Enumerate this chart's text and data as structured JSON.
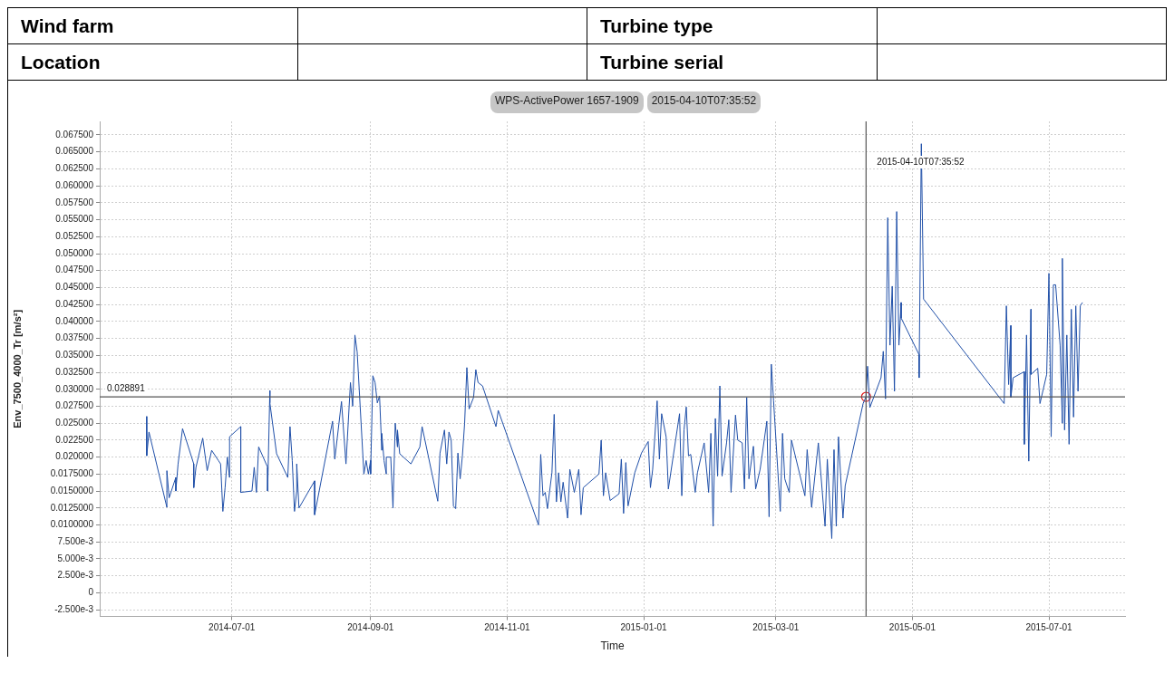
{
  "chart_data": {
    "type": "line",
    "title": "WPS-ActivePower 1657-1909",
    "subtitle": "2015-04-10T07:35:52",
    "annotations": [
      "Wind farm",
      "Location",
      "Turbine type",
      "Turbine serial"
    ],
    "xlabel": "Time",
    "ylabel": "Env_7500_4000_Tr [m/s²]",
    "xlim": [
      "2014-05-03",
      "2015-08-04"
    ],
    "xticks": [
      "2014-07-01",
      "2014-09-01",
      "2014-11-01",
      "2015-01-01",
      "2015-03-01",
      "2015-05-01",
      "2015-07-01"
    ],
    "ylim": [
      -0.0035,
      0.0695
    ],
    "yticks": [
      {
        "value": -0.0025,
        "label": "-2.500e-3"
      },
      0,
      {
        "value": 0.0025,
        "label": "2.500e-3"
      },
      {
        "value": 0.005,
        "label": "5.000e-3"
      },
      {
        "value": 0.0075,
        "label": "7.500e-3"
      },
      {
        "value": 0.01,
        "label": "0.0100000"
      },
      {
        "value": 0.0125,
        "label": "0.0125000"
      },
      {
        "value": 0.015,
        "label": "0.0150000"
      },
      {
        "value": 0.0175,
        "label": "0.0175000"
      },
      {
        "value": 0.02,
        "label": "0.020000"
      },
      {
        "value": 0.0225,
        "label": "0.022500"
      },
      {
        "value": 0.025,
        "label": "0.025000"
      },
      {
        "value": 0.0275,
        "label": "0.027500"
      },
      {
        "value": 0.03,
        "label": "0.030000"
      },
      {
        "value": 0.0325,
        "label": "0.032500"
      },
      {
        "value": 0.035,
        "label": "0.035000"
      },
      {
        "value": 0.0375,
        "label": "0.037500"
      },
      {
        "value": 0.04,
        "label": "0.040000"
      },
      {
        "value": 0.0425,
        "label": "0.042500"
      },
      {
        "value": 0.045,
        "label": "0.045000"
      },
      {
        "value": 0.0475,
        "label": "0.047500"
      },
      {
        "value": 0.05,
        "label": "0.050000"
      },
      {
        "value": 0.0525,
        "label": "0.052500"
      },
      {
        "value": 0.055,
        "label": "0.055000"
      },
      {
        "value": 0.0575,
        "label": "0.057500"
      },
      {
        "value": 0.06,
        "label": "0.060000"
      },
      {
        "value": 0.0625,
        "label": "0.062500"
      },
      {
        "value": 0.065,
        "label": "0.065000"
      },
      {
        "value": 0.0675,
        "label": "0.067500"
      }
    ],
    "grid": true,
    "legend": false,
    "line_style": "solid",
    "ref_lines": [
      {
        "axis": "x",
        "value": "2015-04-10T07:35",
        "label": "2015-04-10T07:35:52",
        "color": "#555555"
      },
      {
        "axis": "y",
        "value": 0.028891,
        "label": "0.028891",
        "color": "#555555"
      }
    ],
    "series": [
      {
        "type": "line",
        "color": "#1f4fa8",
        "marker": "none",
        "x": [
          "2014-05-24",
          "2014-05-24",
          "2014-05-25",
          "2014-06-02",
          "2014-06-02",
          "2014-06-03",
          "2014-06-06",
          "2014-06-06",
          "2014-06-07",
          "2014-06-09",
          "2014-06-14",
          "2014-06-14",
          "2014-06-15",
          "2014-06-18",
          "2014-06-20",
          "2014-06-22",
          "2014-06-25",
          "2014-06-26",
          "2014-06-27",
          "2014-06-28",
          "2014-06-29",
          "2014-06-30",
          "2014-06-30",
          "2014-07-05",
          "2014-07-05",
          "2014-07-10",
          "2014-07-11",
          "2014-07-12",
          "2014-07-13",
          "2014-07-17",
          "2014-07-17",
          "2014-07-18",
          "2014-07-18",
          "2014-07-21",
          "2014-07-26",
          "2014-07-27",
          "2014-07-28",
          "2014-07-29",
          "2014-07-30",
          "2014-07-30",
          "2014-07-31",
          "2014-08-07",
          "2014-08-07",
          "2014-08-15",
          "2014-08-16",
          "2014-08-19",
          "2014-08-21",
          "2014-08-23",
          "2014-08-24",
          "2014-08-25",
          "2014-08-26",
          "2014-08-29",
          "2014-08-30",
          "2014-08-31",
          "2014-09-01",
          "2014-09-01",
          "2014-09-02",
          "2014-09-03",
          "2014-09-04",
          "2014-09-05",
          "2014-09-06",
          "2014-09-06",
          "2014-09-07",
          "2014-09-08",
          "2014-09-08",
          "2014-09-10",
          "2014-09-11",
          "2014-09-12",
          "2014-09-13",
          "2014-09-13",
          "2014-09-14",
          "2014-09-19",
          "2014-09-23",
          "2014-09-24",
          "2014-10-01",
          "2014-10-02",
          "2014-10-04",
          "2014-10-05",
          "2014-10-06",
          "2014-10-07",
          "2014-10-08",
          "2014-10-09",
          "2014-10-10",
          "2014-10-11",
          "2014-10-12",
          "2014-10-13",
          "2014-10-14",
          "2014-10-15",
          "2014-10-17",
          "2014-10-18",
          "2014-10-19",
          "2014-10-21",
          "2014-10-27",
          "2014-10-28",
          "2014-11-15",
          "2014-11-16",
          "2014-11-17",
          "2014-11-18",
          "2014-11-19",
          "2014-11-21",
          "2014-11-22",
          "2014-11-23",
          "2014-11-24",
          "2014-11-25",
          "2014-11-26",
          "2014-11-28",
          "2014-11-29",
          "2014-12-01",
          "2014-12-03",
          "2014-12-04",
          "2014-12-05",
          "2014-12-12",
          "2014-12-13",
          "2014-12-14",
          "2014-12-15",
          "2014-12-17",
          "2014-12-21",
          "2014-12-22",
          "2014-12-23",
          "2014-12-24",
          "2014-12-25",
          "2014-12-28",
          "2014-12-31",
          "2015-01-03",
          "2015-01-04",
          "2015-01-05",
          "2015-01-07",
          "2015-01-08",
          "2015-01-09",
          "2015-01-11",
          "2015-01-12",
          "2015-01-17",
          "2015-01-18",
          "2015-01-19",
          "2015-01-20",
          "2015-01-21",
          "2015-01-22",
          "2015-01-24",
          "2015-01-25",
          "2015-01-28",
          "2015-01-30",
          "2015-01-31",
          "2015-02-01",
          "2015-02-02",
          "2015-02-03",
          "2015-02-04",
          "2015-02-05",
          "2015-02-07",
          "2015-02-08",
          "2015-02-09",
          "2015-02-11",
          "2015-02-12",
          "2015-02-14",
          "2015-02-15",
          "2015-02-16",
          "2015-02-17",
          "2015-02-19",
          "2015-02-20",
          "2015-02-22",
          "2015-02-25",
          "2015-02-26",
          "2015-02-27",
          "2015-02-28",
          "2015-03-03",
          "2015-03-04",
          "2015-03-05",
          "2015-03-07",
          "2015-03-08",
          "2015-03-14",
          "2015-03-15",
          "2015-03-17",
          "2015-03-20",
          "2015-03-23",
          "2015-03-24",
          "2015-03-26",
          "2015-03-27",
          "2015-03-28",
          "2015-03-29",
          "2015-03-31",
          "2015-04-01",
          "2015-04-09",
          "2015-04-10T07:35",
          "2015-04-11",
          "2015-04-12",
          "2015-04-17",
          "2015-04-18",
          "2015-04-19",
          "2015-04-20",
          "2015-04-21",
          "2015-04-22",
          "2015-04-23",
          "2015-04-24",
          "2015-04-25",
          "2015-04-26",
          "2015-04-26",
          "2015-05-04",
          "2015-05-04",
          "2015-05-05",
          "2015-05-06",
          "2015-06-11",
          "2015-06-12",
          "2015-06-13",
          "2015-06-14",
          "2015-06-14",
          "2015-06-15",
          "2015-06-20",
          "2015-06-20",
          "2015-06-21",
          "2015-06-22",
          "2015-06-23",
          "2015-06-23",
          "2015-06-26",
          "2015-06-27",
          "2015-06-30",
          "2015-07-01",
          "2015-07-02",
          "2015-07-03",
          "2015-07-04",
          "2015-07-06",
          "2015-07-07",
          "2015-07-07",
          "2015-07-08",
          "2015-07-09",
          "2015-07-10",
          "2015-07-11",
          "2015-07-12",
          "2015-07-13",
          "2015-07-14",
          "2015-07-15",
          "2015-07-16"
        ],
        "values": [
          0.026,
          0.0202,
          0.0237,
          0.0126,
          0.018,
          0.014,
          0.017,
          0.015,
          0.019,
          0.0242,
          0.019,
          0.0155,
          0.0185,
          0.0228,
          0.018,
          0.021,
          0.0195,
          0.019,
          0.012,
          0.0155,
          0.02,
          0.017,
          0.023,
          0.0245,
          0.0148,
          0.015,
          0.0185,
          0.0148,
          0.0215,
          0.0185,
          0.015,
          0.0298,
          0.028,
          0.0205,
          0.017,
          0.0245,
          0.0195,
          0.012,
          0.015,
          0.019,
          0.0125,
          0.0165,
          0.0115,
          0.0253,
          0.0197,
          0.0282,
          0.019,
          0.031,
          0.0275,
          0.038,
          0.0355,
          0.0175,
          0.0195,
          0.0175,
          0.0195,
          0.0175,
          0.032,
          0.031,
          0.028,
          0.029,
          0.021,
          0.0235,
          0.0195,
          0.0175,
          0.02,
          0.02,
          0.0125,
          0.025,
          0.0215,
          0.024,
          0.0205,
          0.019,
          0.0215,
          0.0245,
          0.0135,
          0.0206,
          0.024,
          0.019,
          0.0237,
          0.0225,
          0.0128,
          0.0124,
          0.0206,
          0.0168,
          0.0202,
          0.025,
          0.0332,
          0.0271,
          0.0288,
          0.0329,
          0.031,
          0.0305,
          0.0245,
          0.0269,
          0.01,
          0.0204,
          0.0143,
          0.0148,
          0.0124,
          0.0177,
          0.0263,
          0.0134,
          0.0177,
          0.0134,
          0.0163,
          0.011,
          0.0182,
          0.0148,
          0.0182,
          0.0115,
          0.0155,
          0.0175,
          0.0225,
          0.0143,
          0.0177,
          0.0136,
          0.0146,
          0.0197,
          0.0117,
          0.0192,
          0.0128,
          0.0177,
          0.0206,
          0.0223,
          0.0155,
          0.0182,
          0.0283,
          0.0197,
          0.0264,
          0.023,
          0.0153,
          0.0264,
          0.0143,
          0.024,
          0.0274,
          0.0202,
          0.0204,
          0.0148,
          0.0177,
          0.0221,
          0.0148,
          0.0235,
          0.0098,
          0.0257,
          0.0172,
          0.0305,
          0.0172,
          0.0221,
          0.0255,
          0.0148,
          0.0262,
          0.0225,
          0.0221,
          0.0153,
          0.0288,
          0.0168,
          0.0216,
          0.0153,
          0.0182,
          0.0253,
          0.0112,
          0.0337,
          0.0283,
          0.012,
          0.0235,
          0.0168,
          0.0148,
          0.0225,
          0.0143,
          0.0211,
          0.0126,
          0.0221,
          0.0098,
          0.0197,
          0.008,
          0.0211,
          0.0098,
          0.023,
          0.011,
          0.0158,
          0.0279,
          0.0289,
          0.0334,
          0.0273,
          0.0317,
          0.0356,
          0.0286,
          0.0553,
          0.0365,
          0.0452,
          0.0297,
          0.0562,
          0.0365,
          0.0428,
          0.0405,
          0.0351,
          0.0317,
          0.0662,
          0.0433,
          0.0279,
          0.0423,
          0.0307,
          0.0394,
          0.0288,
          0.0317,
          0.0326,
          0.0219,
          0.038,
          0.0194,
          0.0418,
          0.0322,
          0.0331,
          0.0279,
          0.0322,
          0.0471,
          0.023,
          0.0454,
          0.0454,
          0.0365,
          0.025,
          0.0493,
          0.024,
          0.038,
          0.0219,
          0.0418,
          0.0259,
          0.0423,
          0.0297,
          0.0423,
          0.0428
        ]
      },
      {
        "type": "scatter",
        "color": "#e02020",
        "marker": "circle",
        "x": [
          "2015-04-10T07:35"
        ],
        "values": [
          0.028891
        ]
      }
    ]
  }
}
